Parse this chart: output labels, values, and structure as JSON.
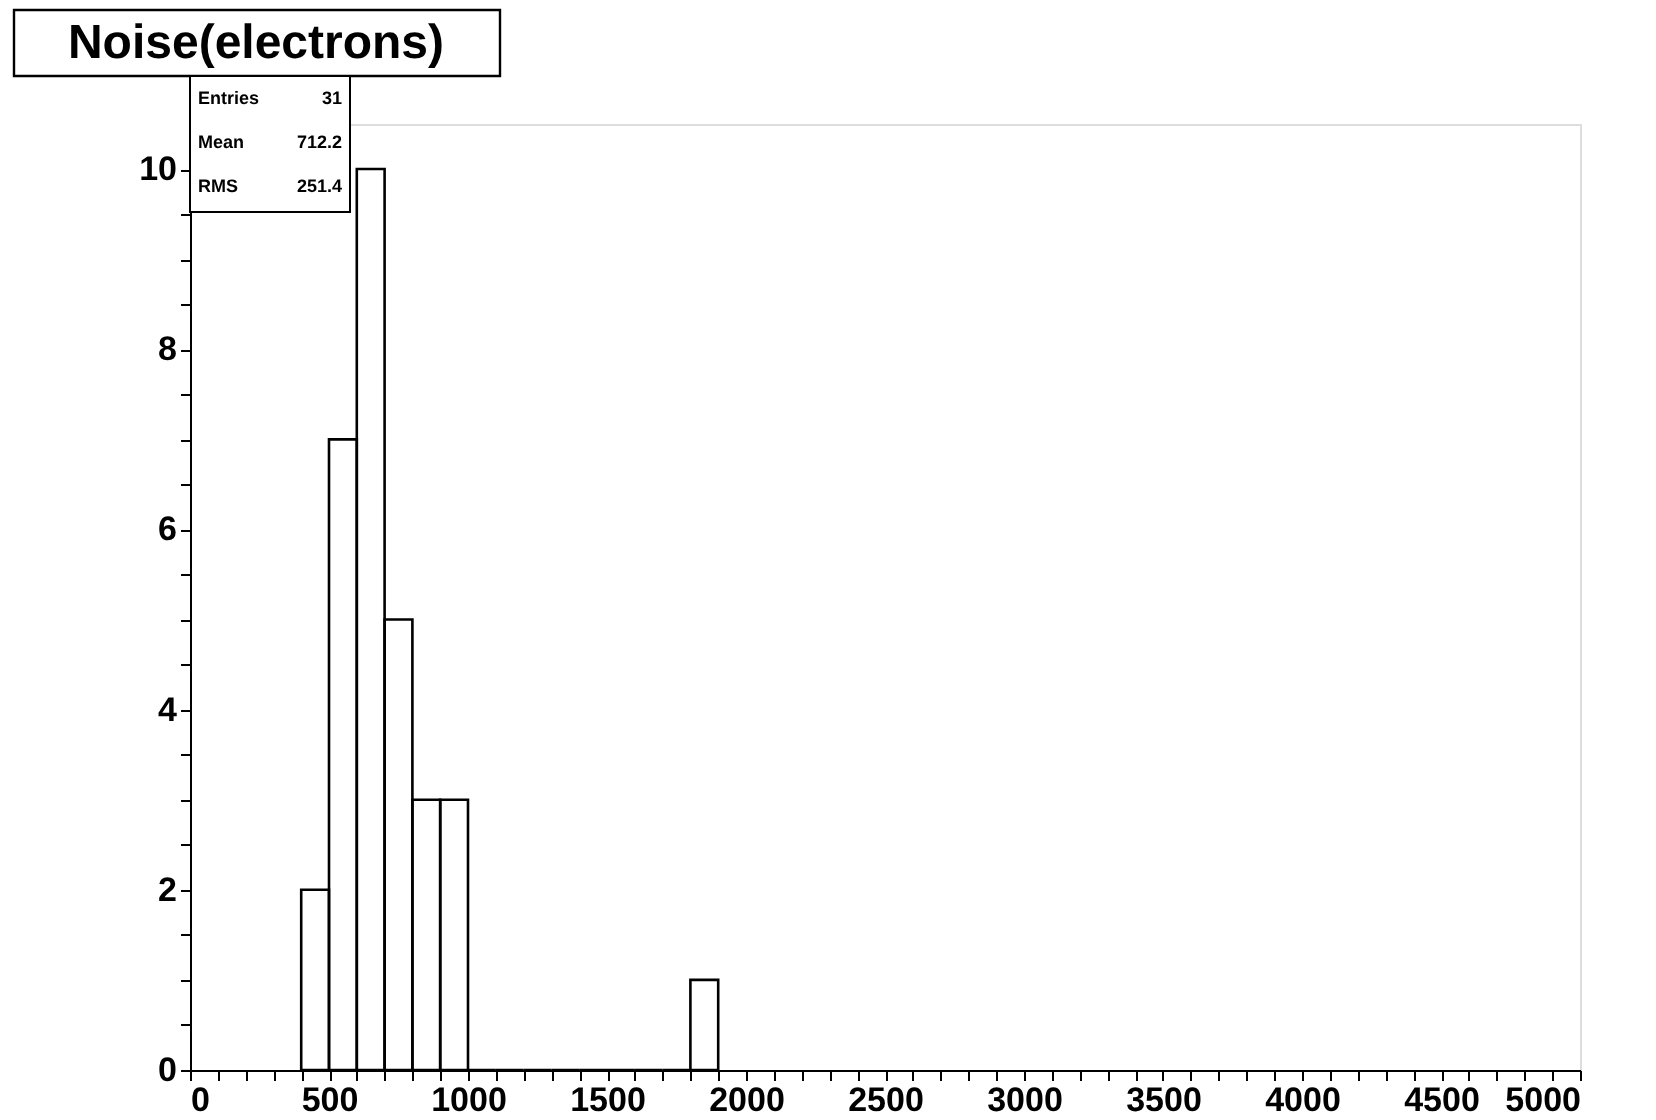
{
  "chart_data": {
    "type": "histogram",
    "title": "Noise(electrons)",
    "bins": [
      400,
      500,
      600,
      700,
      800,
      900,
      1000,
      1100,
      1200,
      1300,
      1400,
      1500,
      1600,
      1700,
      1800,
      1900
    ],
    "values": [
      2,
      7,
      10,
      5,
      3,
      3,
      0,
      0,
      0,
      0,
      0,
      0,
      0,
      0,
      1
    ],
    "color": "#000000",
    "xlim": [
      0,
      5000
    ],
    "xticks": [
      0,
      {
        "value": 100,
        "label": null
      },
      {
        "value": 200,
        "label": null
      },
      {
        "value": 300,
        "label": null
      },
      {
        "value": 400,
        "label": null
      },
      500,
      {
        "value": 600,
        "label": null
      },
      {
        "value": 700,
        "label": null
      },
      {
        "value": 800,
        "label": null
      },
      {
        "value": 900,
        "label": null
      },
      1000,
      {
        "value": 1100,
        "label": null
      },
      {
        "value": 1200,
        "label": null
      },
      {
        "value": 1300,
        "label": null
      },
      {
        "value": 1400,
        "label": null
      },
      1500,
      {
        "value": 1600,
        "label": null
      },
      {
        "value": 1700,
        "label": null
      },
      {
        "value": 1800,
        "label": null
      },
      {
        "value": 1900,
        "label": null
      },
      2000,
      {
        "value": 2100,
        "label": null
      },
      {
        "value": 2200,
        "label": null
      },
      {
        "value": 2300,
        "label": null
      },
      {
        "value": 2400,
        "label": null
      },
      2500,
      {
        "value": 2600,
        "label": null
      },
      {
        "value": 2700,
        "label": null
      },
      {
        "value": 2800,
        "label": null
      },
      {
        "value": 2900,
        "label": null
      },
      3000,
      {
        "value": 3100,
        "label": null
      },
      {
        "value": 3200,
        "label": null
      },
      {
        "value": 3300,
        "label": null
      },
      {
        "value": 3400,
        "label": null
      },
      3500,
      {
        "value": 3600,
        "label": null
      },
      {
        "value": 3700,
        "label": null
      },
      {
        "value": 3800,
        "label": null
      },
      {
        "value": 3900,
        "label": null
      },
      4000,
      {
        "value": 4100,
        "label": null
      },
      {
        "value": 4200,
        "label": null
      },
      {
        "value": 4300,
        "label": null
      },
      {
        "value": 4400,
        "label": null
      },
      4500,
      {
        "value": 4600,
        "label": null
      },
      {
        "value": 4700,
        "label": null
      },
      {
        "value": 4800,
        "label": null
      },
      {
        "value": 4900,
        "label": null
      },
      5000
    ],
    "ylim": [
      0,
      10.5
    ],
    "yticks": [
      0,
      {
        "value": 0.5,
        "label": null
      },
      {
        "value": 1,
        "label": null
      },
      {
        "value": 1.5,
        "label": null
      },
      2,
      {
        "value": 2.5,
        "label": null
      },
      {
        "value": 3,
        "label": null
      },
      {
        "value": 3.5,
        "label": null
      },
      4,
      {
        "value": 4.5,
        "label": null
      },
      {
        "value": 5,
        "label": null
      },
      {
        "value": 5.5,
        "label": null
      },
      6,
      {
        "value": 6.5,
        "label": null
      },
      {
        "value": 7,
        "label": null
      },
      {
        "value": 7.5,
        "label": null
      },
      8,
      {
        "value": 8.5,
        "label": null
      },
      {
        "value": 9,
        "label": null
      },
      {
        "value": 9.5,
        "label": null
      },
      10
    ],
    "grid": false,
    "annotations": [
      "Entries 31",
      "Mean 712.2",
      "RMS 251.4"
    ]
  }
}
